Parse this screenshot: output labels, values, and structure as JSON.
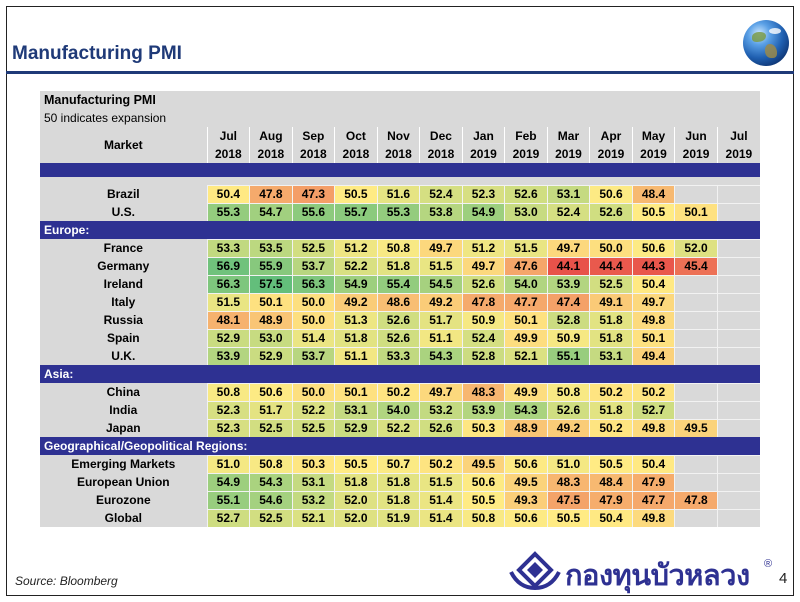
{
  "slide": {
    "title": "Manufacturing PMI",
    "source": "Source:  Bloomberg",
    "page_number": "4",
    "logo_text": "กองทุนบัวหลวง",
    "logo_reg": "®"
  },
  "table": {
    "title": "Manufacturing PMI",
    "subtitle": "50 indicates expansion",
    "market_header": "Market",
    "months": [
      "Jul",
      "Aug",
      "Sep",
      "Oct",
      "Nov",
      "Dec",
      "Jan",
      "Feb",
      "Mar",
      "Apr",
      "May",
      "Jun",
      "Jul"
    ],
    "years": [
      "2018",
      "2018",
      "2018",
      "2018",
      "2018",
      "2018",
      "2019",
      "2019",
      "2019",
      "2019",
      "2019",
      "2019",
      "2019"
    ],
    "groups": [
      {
        "section": "",
        "rows": [
          {
            "market": "Brazil",
            "values": [
              "50.4",
              "47.8",
              "47.3",
              "50.5",
              "51.6",
              "52.4",
              "52.3",
              "52.6",
              "53.1",
              "50.6",
              "48.4",
              "",
              ""
            ]
          },
          {
            "market": "U.S.",
            "values": [
              "55.3",
              "54.7",
              "55.6",
              "55.7",
              "55.3",
              "53.8",
              "54.9",
              "53.0",
              "52.4",
              "52.6",
              "50.5",
              "50.1",
              ""
            ]
          }
        ]
      },
      {
        "section": "Europe:",
        "rows": [
          {
            "market": "France",
            "values": [
              "53.3",
              "53.5",
              "52.5",
              "51.2",
              "50.8",
              "49.7",
              "51.2",
              "51.5",
              "49.7",
              "50.0",
              "50.6",
              "52.0",
              ""
            ]
          },
          {
            "market": "Germany",
            "values": [
              "56.9",
              "55.9",
              "53.7",
              "52.2",
              "51.8",
              "51.5",
              "49.7",
              "47.6",
              "44.1",
              "44.4",
              "44.3",
              "45.4",
              ""
            ]
          },
          {
            "market": "Ireland",
            "values": [
              "56.3",
              "57.5",
              "56.3",
              "54.9",
              "55.4",
              "54.5",
              "52.6",
              "54.0",
              "53.9",
              "52.5",
              "50.4",
              "",
              ""
            ]
          },
          {
            "market": "Italy",
            "values": [
              "51.5",
              "50.1",
              "50.0",
              "49.2",
              "48.6",
              "49.2",
              "47.8",
              "47.7",
              "47.4",
              "49.1",
              "49.7",
              "",
              ""
            ]
          },
          {
            "market": "Russia",
            "values": [
              "48.1",
              "48.9",
              "50.0",
              "51.3",
              "52.6",
              "51.7",
              "50.9",
              "50.1",
              "52.8",
              "51.8",
              "49.8",
              "",
              ""
            ]
          },
          {
            "market": "Spain",
            "values": [
              "52.9",
              "53.0",
              "51.4",
              "51.8",
              "52.6",
              "51.1",
              "52.4",
              "49.9",
              "50.9",
              "51.8",
              "50.1",
              "",
              ""
            ]
          },
          {
            "market": "U.K.",
            "values": [
              "53.9",
              "52.9",
              "53.7",
              "51.1",
              "53.3",
              "54.3",
              "52.8",
              "52.1",
              "55.1",
              "53.1",
              "49.4",
              "",
              ""
            ]
          }
        ]
      },
      {
        "section": "Asia:",
        "rows": [
          {
            "market": "China",
            "values": [
              "50.8",
              "50.6",
              "50.0",
              "50.1",
              "50.2",
              "49.7",
              "48.3",
              "49.9",
              "50.8",
              "50.2",
              "50.2",
              "",
              ""
            ]
          },
          {
            "market": "India",
            "values": [
              "52.3",
              "51.7",
              "52.2",
              "53.1",
              "54.0",
              "53.2",
              "53.9",
              "54.3",
              "52.6",
              "51.8",
              "52.7",
              "",
              ""
            ]
          },
          {
            "market": "Japan",
            "values": [
              "52.3",
              "52.5",
              "52.5",
              "52.9",
              "52.2",
              "52.6",
              "50.3",
              "48.9",
              "49.2",
              "50.2",
              "49.8",
              "49.5",
              ""
            ]
          }
        ]
      },
      {
        "section": "Geographical/Geopolitical Regions:",
        "rows": [
          {
            "market": "Emerging Markets",
            "values": [
              "51.0",
              "50.8",
              "50.3",
              "50.5",
              "50.7",
              "50.2",
              "49.5",
              "50.6",
              "51.0",
              "50.5",
              "50.4",
              "",
              ""
            ]
          },
          {
            "market": "European Union",
            "values": [
              "54.9",
              "54.3",
              "53.1",
              "51.8",
              "51.8",
              "51.5",
              "50.6",
              "49.5",
              "48.3",
              "48.4",
              "47.9",
              "",
              ""
            ]
          },
          {
            "market": "Eurozone",
            "values": [
              "55.1",
              "54.6",
              "53.2",
              "52.0",
              "51.8",
              "51.4",
              "50.5",
              "49.3",
              "47.5",
              "47.9",
              "47.7",
              "47.8",
              ""
            ]
          },
          {
            "market": "Global",
            "values": [
              "52.7",
              "52.5",
              "52.1",
              "52.0",
              "51.9",
              "51.4",
              "50.8",
              "50.6",
              "50.5",
              "50.4",
              "49.8",
              "",
              ""
            ]
          }
        ]
      }
    ]
  },
  "colors": {
    "title_blue": "#1f3a78",
    "band_navy": "#2e3192",
    "header_gray": "#d9d9d9",
    "scale_red": "#e8524a",
    "scale_yellow": "#ffeb84",
    "scale_green": "#63be7b"
  },
  "icons": {
    "globe": "globe-icon",
    "logo": "lotus-logo-icon"
  }
}
